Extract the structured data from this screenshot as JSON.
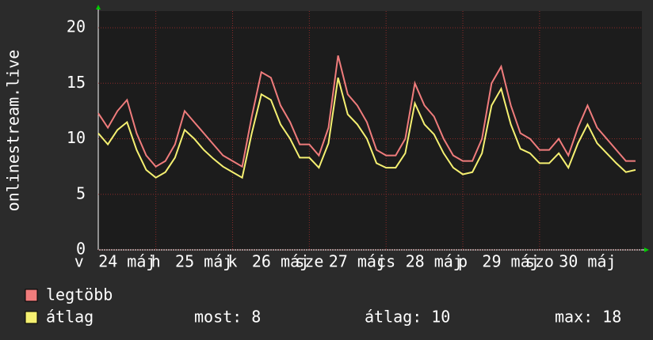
{
  "chart_data": {
    "type": "line",
    "y_label": "onlinestream.live",
    "x": [
      6,
      9,
      12,
      15,
      18,
      21,
      24,
      27,
      30,
      33,
      36,
      39,
      42,
      45,
      48,
      51,
      54,
      57,
      60,
      63,
      66,
      69,
      72,
      75,
      78,
      81,
      84,
      87,
      90,
      93,
      96,
      99,
      102,
      105,
      108,
      111,
      114,
      117,
      120,
      123,
      126,
      129,
      132,
      135,
      138,
      141,
      144,
      147,
      150,
      153,
      156,
      159,
      162,
      165,
      168,
      171,
      174
    ],
    "xlim": [
      6,
      176
    ],
    "xticks": [
      {
        "value": 0,
        "label": "v"
      },
      {
        "value": 24,
        "label": "h"
      },
      {
        "value": 48,
        "label": "k"
      },
      {
        "value": 72,
        "label": "sze"
      },
      {
        "value": 96,
        "label": "cs"
      },
      {
        "value": 120,
        "label": "p"
      },
      {
        "value": 144,
        "label": "szo"
      }
    ],
    "date_ticks": [
      {
        "value": 15,
        "label": "24 máj"
      },
      {
        "value": 39,
        "label": "25 máj"
      },
      {
        "value": 63,
        "label": "26 máj"
      },
      {
        "value": 87,
        "label": "27 máj"
      },
      {
        "value": 111,
        "label": "28 máj"
      },
      {
        "value": 135,
        "label": "29 máj"
      },
      {
        "value": 159,
        "label": "30 máj"
      }
    ],
    "ylim": [
      0,
      21.5
    ],
    "yticks": [
      0,
      5,
      10,
      15,
      20
    ],
    "grid": true,
    "series": [
      {
        "name": "legtöbb",
        "color": "#f07c7c",
        "values": [
          12.3,
          11,
          12.5,
          13.5,
          10.5,
          8.5,
          7.5,
          8,
          9.5,
          12.5,
          11.5,
          10.5,
          9.5,
          8.5,
          8,
          7.5,
          12,
          16,
          15.5,
          13,
          11.5,
          9.5,
          9.5,
          8.5,
          11,
          17.5,
          14,
          13,
          11.5,
          9,
          8.5,
          8.5,
          10,
          15,
          13,
          12,
          10,
          8.5,
          8,
          8,
          10,
          15,
          16.5,
          13,
          10.5,
          10,
          9,
          9,
          10,
          8.5,
          11,
          13,
          11,
          10,
          9,
          8,
          8
        ]
      },
      {
        "name": "átlag",
        "color": "#f5f071",
        "values": [
          10.5,
          9.5,
          10.8,
          11.5,
          9,
          7.2,
          6.5,
          7,
          8.3,
          10.8,
          10,
          9,
          8.2,
          7.5,
          7,
          6.5,
          10.5,
          14,
          13.5,
          11.3,
          10,
          8.3,
          8.3,
          7.4,
          9.6,
          15.5,
          12.2,
          11.3,
          10,
          7.8,
          7.4,
          7.4,
          8.7,
          13.2,
          11.3,
          10.4,
          8.7,
          7.4,
          6.8,
          7,
          8.7,
          13,
          14.5,
          11.3,
          9.1,
          8.7,
          7.8,
          7.8,
          8.7,
          7.4,
          9.6,
          11.3,
          9.6,
          8.7,
          7.8,
          7,
          7.2
        ]
      }
    ],
    "stats": [
      {
        "label": "most:",
        "value": 8
      },
      {
        "label": "átlag:",
        "value": 10
      },
      {
        "label": "max:",
        "value": 18
      }
    ]
  }
}
